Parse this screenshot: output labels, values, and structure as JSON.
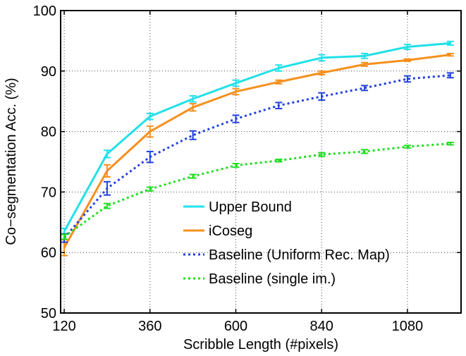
{
  "chart_data": {
    "type": "line",
    "title": "",
    "xlabel": "Scribble Length (#pixels)",
    "ylabel": "Co−segmentation Acc. (%)",
    "xlim": [
      110,
      1230
    ],
    "ylim": [
      50,
      100
    ],
    "x_ticks": [
      120,
      360,
      600,
      840,
      1080
    ],
    "y_ticks": [
      50,
      60,
      70,
      80,
      90,
      100
    ],
    "grid": true,
    "legend_position": "lower-right",
    "series": [
      {
        "name": "Upper Bound",
        "color": "#22e0e8",
        "style": "solid",
        "x": [
          120,
          240,
          360,
          480,
          600,
          720,
          840,
          960,
          1080,
          1200
        ],
        "y": [
          63.5,
          76.3,
          82.5,
          85.4,
          88.0,
          90.5,
          92.2,
          92.5,
          94.0,
          94.6
        ],
        "err": [
          0.5,
          0.6,
          0.5,
          0.5,
          0.5,
          0.5,
          0.5,
          0.4,
          0.4,
          0.3
        ]
      },
      {
        "name": "iCoseg",
        "color": "#f5901e",
        "style": "solid",
        "x": [
          120,
          240,
          360,
          480,
          600,
          720,
          840,
          960,
          1080,
          1200
        ],
        "y": [
          60.8,
          73.5,
          80.0,
          84.0,
          86.6,
          88.2,
          89.7,
          91.1,
          91.8,
          92.7
        ],
        "err": [
          1.3,
          1.0,
          0.9,
          0.6,
          0.5,
          0.3,
          0.3,
          0.3,
          0.2,
          0.2
        ]
      },
      {
        "name": "Baseline (Uniform Rec. Map)",
        "color": "#2040e0",
        "style": "dotted",
        "x": [
          120,
          240,
          360,
          480,
          600,
          720,
          840,
          960,
          1080,
          1200
        ],
        "y": [
          62.4,
          70.6,
          75.8,
          79.4,
          82.1,
          84.3,
          85.8,
          87.2,
          88.7,
          89.3
        ],
        "err": [
          0.7,
          1.1,
          0.9,
          0.7,
          0.6,
          0.5,
          0.6,
          0.4,
          0.5,
          0.4
        ]
      },
      {
        "name": "Baseline (single im.)",
        "color": "#22dd22",
        "style": "dotted",
        "x": [
          120,
          240,
          360,
          480,
          600,
          720,
          840,
          960,
          1080,
          1200
        ],
        "y": [
          62.6,
          67.7,
          70.5,
          72.6,
          74.4,
          75.2,
          76.2,
          76.7,
          77.5,
          78.0
        ],
        "err": [
          0.4,
          0.4,
          0.3,
          0.3,
          0.3,
          0.2,
          0.3,
          0.3,
          0.2,
          0.2
        ]
      }
    ]
  }
}
